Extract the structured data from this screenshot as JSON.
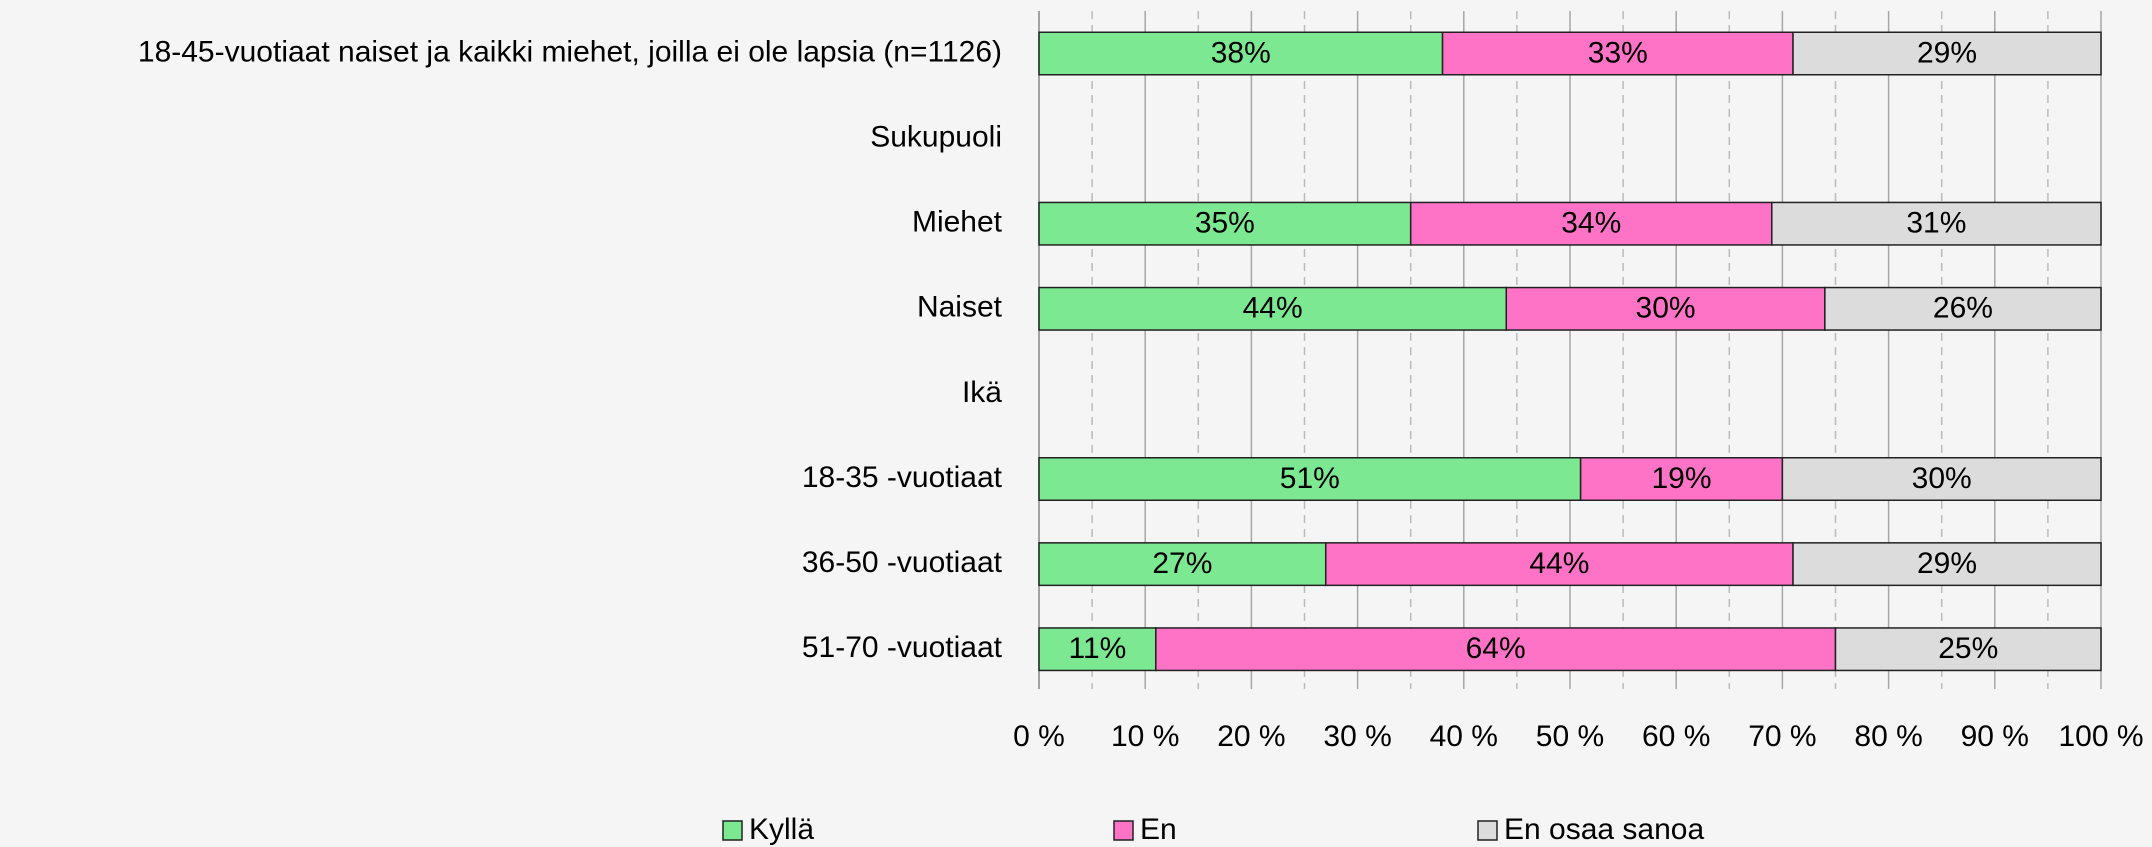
{
  "chart_data": {
    "type": "stacked_barh",
    "categories": [
      "18-45-vuotiaat naiset ja kaikki miehet, joilla ei ole lapsia (n=1126)",
      "Sukupuoli",
      "Miehet",
      "Naiset",
      "Ikä",
      "18-35 -vuotiaat",
      "36-50 -vuotiaat",
      "51-70 -vuotiaat"
    ],
    "series": [
      {
        "name": "Kyllä",
        "color": "#7de892",
        "values": [
          38,
          null,
          35,
          44,
          null,
          51,
          27,
          11
        ],
        "value_labels": [
          "38%",
          null,
          "35%",
          "44%",
          null,
          "51%",
          "27%",
          "11%"
        ]
      },
      {
        "name": "En",
        "color": "#ff73c7",
        "values": [
          33,
          null,
          34,
          30,
          null,
          19,
          44,
          64
        ],
        "value_labels": [
          "33%",
          null,
          "34%",
          "30%",
          null,
          "19%",
          "44%",
          "64%"
        ]
      },
      {
        "name": "En osaa sanoa",
        "color": "#dcdcdc",
        "values": [
          29,
          null,
          31,
          26,
          null,
          30,
          29,
          25
        ],
        "value_labels": [
          "29%",
          null,
          "31%",
          "26%",
          null,
          "30%",
          "29%",
          "25%"
        ]
      }
    ],
    "xlim": [
      0,
      100
    ],
    "xticks": [
      {
        "value": 0,
        "label": "0 %"
      },
      {
        "value": 10,
        "label": "10 %"
      },
      {
        "value": 20,
        "label": "20 %"
      },
      {
        "value": 30,
        "label": "30 %"
      },
      {
        "value": 40,
        "label": "40 %"
      },
      {
        "value": 50,
        "label": "50 %"
      },
      {
        "value": 60,
        "label": "60 %"
      },
      {
        "value": 70,
        "label": "70 %"
      },
      {
        "value": 80,
        "label": "80 %"
      },
      {
        "value": 90,
        "label": "90 %"
      },
      {
        "value": 100,
        "label": "100 %"
      }
    ],
    "grid": true,
    "minor_grid": true,
    "legend": "bottom"
  }
}
